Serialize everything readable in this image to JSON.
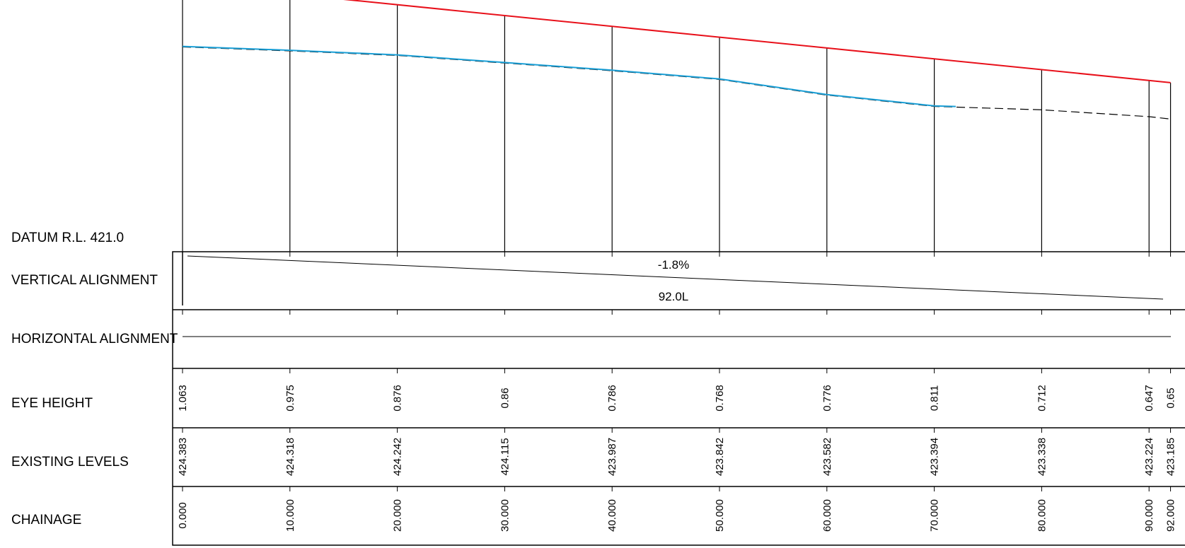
{
  "datum_label": "DATUM R.L. 421.0",
  "row_labels": {
    "vertical_alignment": "VERTICAL ALIGNMENT",
    "horizontal_alignment": "HORIZONTAL ALIGNMENT",
    "eye_height": "EYE HEIGHT",
    "existing_levels": "EXISTING LEVELS",
    "chainage": "CHAINAGE"
  },
  "vertical_alignment": {
    "grade": "-1.8%",
    "length": "92.0L"
  },
  "colors": {
    "design_line": "#e8101a",
    "surveyed_line": "#1a9fd6",
    "existing_line": "#000000"
  },
  "stations": [
    {
      "chainage": "0.000",
      "existing": "424.383",
      "eye": "1.063"
    },
    {
      "chainage": "10.000",
      "existing": "424.318",
      "eye": "0.975"
    },
    {
      "chainage": "20.000",
      "existing": "424.242",
      "eye": "0.876"
    },
    {
      "chainage": "30.000",
      "existing": "424.115",
      "eye": "0.86"
    },
    {
      "chainage": "40.000",
      "existing": "423.987",
      "eye": "0.786"
    },
    {
      "chainage": "50.000",
      "existing": "423.842",
      "eye": "0.768"
    },
    {
      "chainage": "60.000",
      "existing": "423.582",
      "eye": "0.776"
    },
    {
      "chainage": "70.000",
      "existing": "423.394",
      "eye": "0.811"
    },
    {
      "chainage": "80.000",
      "existing": "423.338",
      "eye": "0.712"
    },
    {
      "chainage": "90.000",
      "existing": "423.224",
      "eye": "0.647"
    },
    {
      "chainage": "92.000",
      "existing": "423.185",
      "eye": "0.65"
    }
  ]
}
